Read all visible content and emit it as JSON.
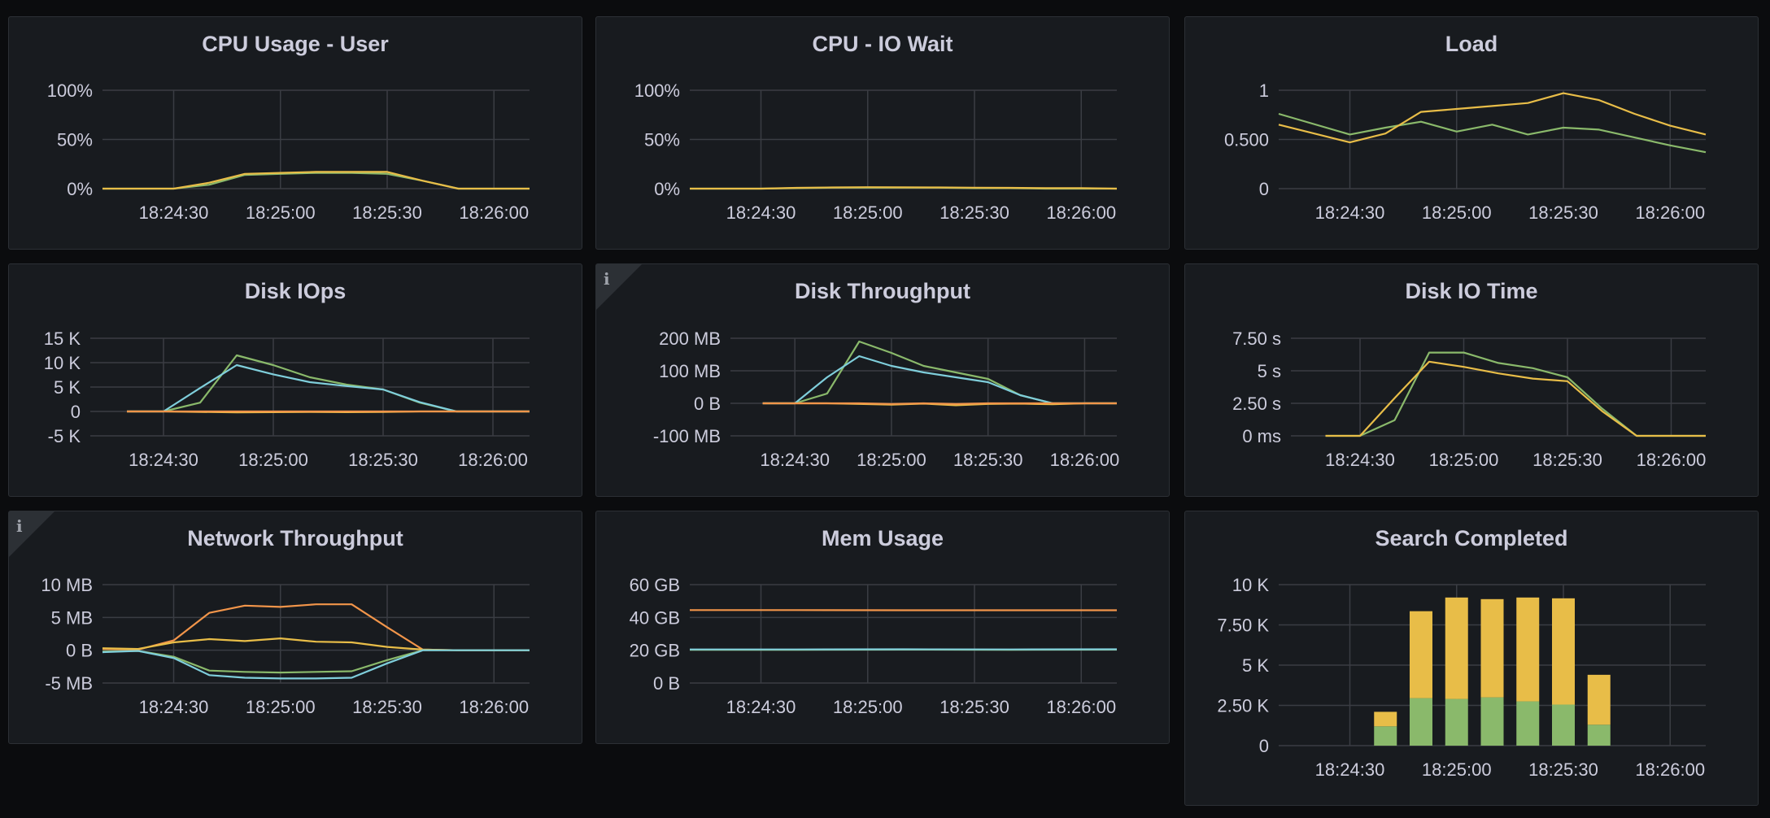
{
  "colors": {
    "green": "#8ab96b",
    "yellow": "#e8bd48",
    "orange": "#f2954a",
    "cyan": "#7fcedb",
    "grid": "#3a3d43",
    "tick": "#ccccdc"
  },
  "chart_data": [
    {
      "type": "line",
      "title": "CPU Usage - User",
      "xlabel": "",
      "ylabel": "",
      "xticks": [
        "18:24:30",
        "18:25:00",
        "18:25:30",
        "18:26:00"
      ],
      "xlim": [
        "18:24:10",
        "18:26:10"
      ],
      "yticks": [
        "0%",
        "50%",
        "100%"
      ],
      "ylim": [
        0,
        100
      ],
      "grid": true,
      "x": [
        "18:24:10",
        "18:24:20",
        "18:24:30",
        "18:24:40",
        "18:24:50",
        "18:25:00",
        "18:25:10",
        "18:25:20",
        "18:25:30",
        "18:25:40",
        "18:25:50",
        "18:26:00",
        "18:26:10"
      ],
      "series": [
        {
          "color": "green",
          "values": [
            0,
            0,
            0,
            4,
            14,
            15,
            16,
            16,
            15,
            8,
            0,
            0,
            0
          ]
        },
        {
          "color": "yellow",
          "values": [
            0,
            0,
            0,
            6,
            15,
            16,
            17,
            17,
            17,
            8,
            0,
            0,
            0
          ]
        }
      ]
    },
    {
      "type": "line",
      "title": "CPU - IO Wait",
      "xlabel": "",
      "ylabel": "",
      "xticks": [
        "18:24:30",
        "18:25:00",
        "18:25:30",
        "18:26:00"
      ],
      "xlim": [
        "18:24:10",
        "18:26:10"
      ],
      "yticks": [
        "0%",
        "50%",
        "100%"
      ],
      "ylim": [
        0,
        100
      ],
      "grid": true,
      "x": [
        "18:24:10",
        "18:24:20",
        "18:24:30",
        "18:24:40",
        "18:24:50",
        "18:25:00",
        "18:25:10",
        "18:25:20",
        "18:25:30",
        "18:25:40",
        "18:25:50",
        "18:26:00",
        "18:26:10"
      ],
      "series": [
        {
          "color": "green",
          "values": [
            0,
            0,
            0,
            0.5,
            1,
            1,
            1,
            1,
            0.5,
            0.5,
            0,
            0,
            0
          ]
        },
        {
          "color": "yellow",
          "values": [
            0,
            0,
            0,
            0.8,
            1.2,
            1.5,
            1.3,
            1.2,
            1,
            0.8,
            0.5,
            0.5,
            0
          ]
        }
      ]
    },
    {
      "type": "line",
      "title": "Load",
      "xlabel": "",
      "ylabel": "",
      "xticks": [
        "18:24:30",
        "18:25:00",
        "18:25:30",
        "18:26:00"
      ],
      "xlim": [
        "18:24:10",
        "18:26:10"
      ],
      "yticks": [
        "0",
        "0.500",
        "1"
      ],
      "ylim": [
        0,
        1
      ],
      "grid": true,
      "x": [
        "18:24:10",
        "18:24:30",
        "18:24:40",
        "18:24:50",
        "18:25:00",
        "18:25:10",
        "18:25:20",
        "18:25:30",
        "18:25:40",
        "18:25:50",
        "18:26:00",
        "18:26:10"
      ],
      "series": [
        {
          "color": "green",
          "values": [
            0.76,
            0.55,
            0.62,
            0.68,
            0.58,
            0.65,
            0.55,
            0.62,
            0.6,
            0.52,
            0.44,
            0.37
          ]
        },
        {
          "color": "yellow",
          "values": [
            0.65,
            0.47,
            0.56,
            0.78,
            0.81,
            0.84,
            0.87,
            0.97,
            0.9,
            0.76,
            0.64,
            0.55
          ]
        }
      ]
    },
    {
      "type": "line",
      "title": "Disk IOps",
      "xlabel": "",
      "ylabel": "",
      "xticks": [
        "18:24:30",
        "18:25:00",
        "18:25:30",
        "18:26:00"
      ],
      "xlim": [
        "18:24:10",
        "18:26:10"
      ],
      "yticks": [
        "-5 K",
        "0",
        "5 K",
        "10 K",
        "15 K"
      ],
      "ylim": [
        -5000,
        15000
      ],
      "grid": true,
      "x": [
        "18:24:20",
        "18:24:30",
        "18:24:40",
        "18:24:50",
        "18:25:00",
        "18:25:10",
        "18:25:20",
        "18:25:30",
        "18:25:40",
        "18:25:50",
        "18:26:00",
        "18:26:10"
      ],
      "series": [
        {
          "color": "green",
          "values": [
            0,
            0,
            1800,
            11500,
            9500,
            7000,
            5500,
            4500,
            1800,
            0,
            0,
            0
          ]
        },
        {
          "color": "cyan",
          "values": [
            0,
            0,
            4800,
            9500,
            7600,
            6000,
            5200,
            4500,
            1900,
            0,
            0,
            0
          ]
        },
        {
          "color": "yellow",
          "values": [
            0,
            0,
            -100,
            -200,
            -150,
            -100,
            -150,
            -100,
            0,
            0,
            0,
            0
          ]
        },
        {
          "color": "orange",
          "values": [
            0,
            0,
            0,
            0,
            0,
            0,
            0,
            0,
            0,
            0,
            0,
            0
          ]
        }
      ]
    },
    {
      "type": "line",
      "title": "Disk Throughput",
      "xlabel": "",
      "ylabel": "",
      "xticks": [
        "18:24:30",
        "18:25:00",
        "18:25:30",
        "18:26:00"
      ],
      "xlim": [
        "18:24:10",
        "18:26:10"
      ],
      "yticks": [
        "-100 MB",
        "0 B",
        "100 MB",
        "200 MB"
      ],
      "ylim": [
        -100,
        200
      ],
      "grid": true,
      "x": [
        "18:24:20",
        "18:24:30",
        "18:24:40",
        "18:24:50",
        "18:25:00",
        "18:25:10",
        "18:25:20",
        "18:25:30",
        "18:25:40",
        "18:25:50",
        "18:26:00",
        "18:26:10"
      ],
      "series": [
        {
          "color": "green",
          "values": [
            0,
            0,
            30,
            190,
            155,
            115,
            95,
            75,
            25,
            0,
            0,
            0
          ]
        },
        {
          "color": "cyan",
          "values": [
            0,
            0,
            80,
            145,
            115,
            95,
            80,
            65,
            25,
            0,
            0,
            0
          ]
        },
        {
          "color": "yellow",
          "values": [
            0,
            0,
            0,
            -2,
            -4,
            -1,
            -6,
            -2,
            -1,
            -3,
            0,
            0
          ]
        },
        {
          "color": "orange",
          "values": [
            0,
            0,
            0,
            0,
            -2,
            0,
            -2,
            0,
            0,
            0,
            0,
            0
          ]
        }
      ]
    },
    {
      "type": "line",
      "title": "Disk IO Time",
      "xlabel": "",
      "ylabel": "",
      "xticks": [
        "18:24:30",
        "18:25:00",
        "18:25:30",
        "18:26:00"
      ],
      "xlim": [
        "18:24:10",
        "18:26:10"
      ],
      "yticks": [
        "0 ms",
        "2.50 s",
        "5 s",
        "7.50 s"
      ],
      "ylim": [
        0,
        7.5
      ],
      "grid": true,
      "x": [
        "18:24:20",
        "18:24:30",
        "18:24:40",
        "18:24:50",
        "18:25:00",
        "18:25:10",
        "18:25:20",
        "18:25:30",
        "18:25:40",
        "18:25:50",
        "18:26:00",
        "18:26:10"
      ],
      "series": [
        {
          "color": "green",
          "values": [
            0,
            0,
            1.2,
            6.4,
            6.4,
            5.6,
            5.2,
            4.5,
            2.1,
            0,
            0,
            0
          ]
        },
        {
          "color": "yellow",
          "values": [
            0,
            0,
            2.9,
            5.7,
            5.3,
            4.8,
            4.4,
            4.2,
            1.9,
            0,
            0,
            0
          ]
        }
      ]
    },
    {
      "type": "line",
      "title": "Network Throughput",
      "xlabel": "",
      "ylabel": "",
      "xticks": [
        "18:24:30",
        "18:25:00",
        "18:25:30",
        "18:26:00"
      ],
      "xlim": [
        "18:24:10",
        "18:26:10"
      ],
      "yticks": [
        "-5 MB",
        "0 B",
        "5 MB",
        "10 MB"
      ],
      "ylim": [
        -5,
        10
      ],
      "grid": true,
      "x": [
        "18:24:10",
        "18:24:20",
        "18:24:30",
        "18:24:40",
        "18:24:50",
        "18:25:00",
        "18:25:10",
        "18:25:20",
        "18:25:30",
        "18:25:40",
        "18:25:50",
        "18:26:00",
        "18:26:10"
      ],
      "series": [
        {
          "color": "orange",
          "values": [
            0.2,
            0.1,
            1.5,
            5.7,
            6.8,
            6.6,
            7.0,
            7.0,
            3.5,
            0.1,
            0,
            0,
            0
          ]
        },
        {
          "color": "yellow",
          "values": [
            0.3,
            0.2,
            1.2,
            1.7,
            1.4,
            1.8,
            1.3,
            1.2,
            0.5,
            0.1,
            0,
            0,
            0
          ]
        },
        {
          "color": "green",
          "values": [
            -0.2,
            -0.1,
            -1.0,
            -3.1,
            -3.3,
            -3.4,
            -3.3,
            -3.2,
            -1.5,
            0,
            0,
            0,
            0
          ]
        },
        {
          "color": "cyan",
          "values": [
            -0.3,
            -0.1,
            -1.2,
            -3.8,
            -4.2,
            -4.3,
            -4.3,
            -4.2,
            -2.0,
            0,
            0,
            0,
            0
          ]
        }
      ]
    },
    {
      "type": "line",
      "title": "Mem Usage",
      "xlabel": "",
      "ylabel": "",
      "xticks": [
        "18:24:30",
        "18:25:00",
        "18:25:30",
        "18:26:00"
      ],
      "xlim": [
        "18:24:10",
        "18:26:10"
      ],
      "yticks": [
        "0 B",
        "20 GB",
        "40 GB",
        "60 GB"
      ],
      "ylim": [
        0,
        60
      ],
      "grid": true,
      "x": [
        "18:24:10",
        "18:24:40",
        "18:25:10",
        "18:25:40",
        "18:26:10"
      ],
      "series": [
        {
          "color": "orange",
          "values": [
            44.5,
            44.5,
            44.4,
            44.4,
            44.4
          ]
        },
        {
          "color": "green",
          "values": [
            20.3,
            20.3,
            20.4,
            20.3,
            20.4
          ]
        },
        {
          "color": "cyan",
          "values": [
            20.5,
            20.5,
            20.6,
            20.5,
            20.6
          ]
        }
      ]
    },
    {
      "type": "bar",
      "stacked": true,
      "title": "Search Completed",
      "xlabel": "",
      "ylabel": "",
      "xticks": [
        "18:24:30",
        "18:25:00",
        "18:25:30",
        "18:26:00"
      ],
      "xlim": [
        "18:24:10",
        "18:26:10"
      ],
      "yticks": [
        "0",
        "2.50 K",
        "5 K",
        "7.50 K",
        "10 K"
      ],
      "ylim": [
        0,
        10000
      ],
      "grid": true,
      "x": [
        "18:24:40",
        "18:24:50",
        "18:25:00",
        "18:25:10",
        "18:25:20",
        "18:25:30",
        "18:25:40"
      ],
      "series": [
        {
          "color": "green",
          "values": [
            1200,
            2950,
            2900,
            3000,
            2750,
            2550,
            1300
          ]
        },
        {
          "color": "yellow",
          "values": [
            900,
            5400,
            6300,
            6100,
            6450,
            6600,
            3100
          ]
        }
      ]
    }
  ]
}
